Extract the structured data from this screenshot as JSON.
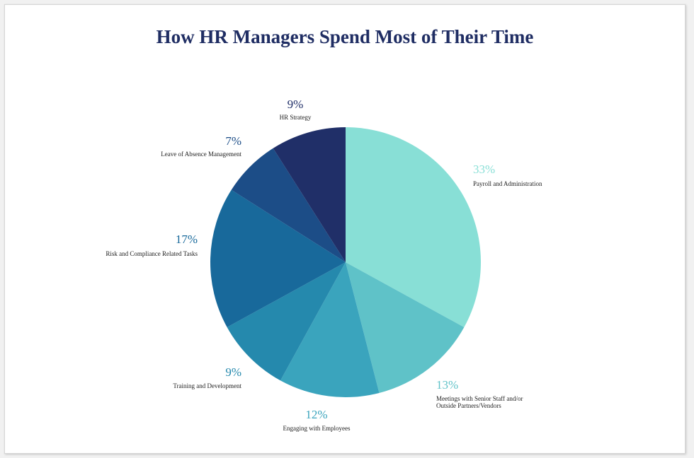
{
  "chart_data": {
    "type": "pie",
    "title": "How HR Managers Spend Most of Their Time",
    "slices": [
      {
        "label": "Payroll and Administration",
        "value": 33,
        "value_label": "33%",
        "color": "#88dfd6"
      },
      {
        "label": "Meetings with Senior Staff and/or Outside Partners/Vendors",
        "label_lines": [
          "Meetings with Senior Staff and/or",
          "Outside Partners/Vendors"
        ],
        "value": 13,
        "value_label": "13%",
        "color": "#5fc2c8"
      },
      {
        "label": "Engaging with Employees",
        "value": 12,
        "value_label": "12%",
        "color": "#3aa4bd"
      },
      {
        "label": "Training and Development",
        "value": 9,
        "value_label": "9%",
        "color": "#2589ad"
      },
      {
        "label": "Risk and Compliance Related Tasks",
        "value": 17,
        "value_label": "17%",
        "color": "#18699b"
      },
      {
        "label": "Leave of Absence Management",
        "value": 7,
        "value_label": "7%",
        "color": "#1c4d87"
      },
      {
        "label": "HR Strategy",
        "value": 9,
        "value_label": "9%",
        "color": "#202f68"
      }
    ],
    "start_angle": "12 o'clock",
    "direction": "clockwise",
    "legend": "none (labels outside slices)"
  }
}
